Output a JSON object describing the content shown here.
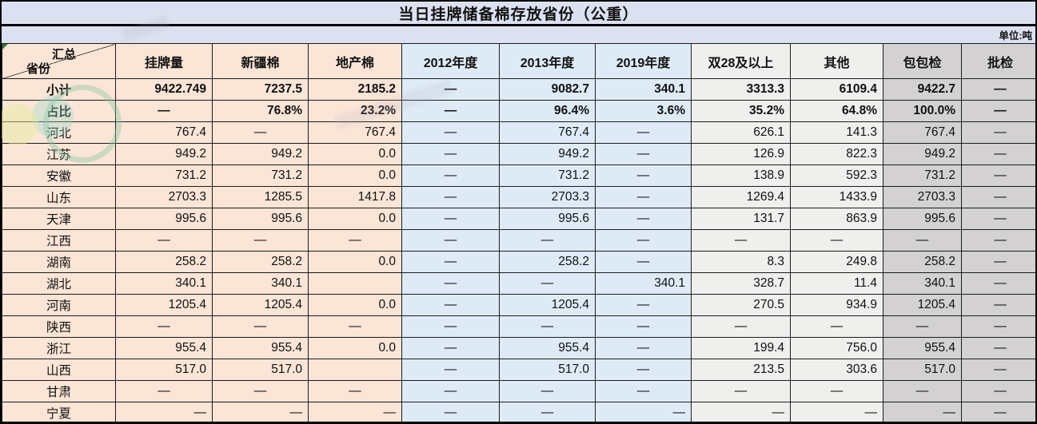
{
  "title": "当日挂牌储备棉存放省份（公重）",
  "unit_label": "单位:吨",
  "corner": {
    "top_label": "汇总",
    "bottom_label": "省份"
  },
  "columns": [
    "挂牌量",
    "新疆棉",
    "地产棉",
    "2012年度",
    "2013年度",
    "2019年度",
    "双28及以上",
    "其他",
    "包包检",
    "批检"
  ],
  "column_groups": [
    "peach",
    "peach",
    "peach",
    "blue",
    "blue",
    "blue",
    "lite",
    "lite",
    "gray",
    "gray"
  ],
  "colors": {
    "banner": "#DBE1F0",
    "peach": "#FBE5D6",
    "blue": "#DEEBF7",
    "lite": "#EFEFED",
    "gray": "#D3D1D1"
  },
  "rows": [
    {
      "label": "小计",
      "bold": true,
      "cells": [
        "9422.749",
        "7237.5",
        "2185.2",
        "—",
        "9082.7",
        "340.1",
        "3313.3",
        "6109.4",
        "9422.7",
        "—"
      ],
      "aligns": [
        "r",
        "r",
        "r",
        "c",
        "r",
        "r",
        "r",
        "r",
        "r",
        "c"
      ]
    },
    {
      "label": "占比",
      "bold": true,
      "cells": [
        "—",
        "76.8%",
        "23.2%",
        "—",
        "96.4%",
        "3.6%",
        "35.2%",
        "64.8%",
        "100.0%",
        "—"
      ],
      "aligns": [
        "c",
        "r",
        "r",
        "c",
        "r",
        "r",
        "r",
        "r",
        "r",
        "c"
      ]
    },
    {
      "label": "河北",
      "bold": false,
      "cells": [
        "767.4",
        "—",
        "767.4",
        "—",
        "767.4",
        "—",
        "626.1",
        "141.3",
        "767.4",
        "—"
      ],
      "aligns": [
        "r",
        "c",
        "r",
        "c",
        "r",
        "c",
        "r",
        "r",
        "r",
        "c"
      ]
    },
    {
      "label": "江苏",
      "bold": false,
      "cells": [
        "949.2",
        "949.2",
        "0.0",
        "—",
        "949.2",
        "—",
        "126.9",
        "822.3",
        "949.2",
        "—"
      ],
      "aligns": [
        "r",
        "r",
        "r",
        "c",
        "r",
        "c",
        "r",
        "r",
        "r",
        "c"
      ]
    },
    {
      "label": "安徽",
      "bold": false,
      "cells": [
        "731.2",
        "731.2",
        "0.0",
        "—",
        "731.2",
        "—",
        "138.9",
        "592.3",
        "731.2",
        "—"
      ],
      "aligns": [
        "r",
        "r",
        "r",
        "c",
        "r",
        "c",
        "r",
        "r",
        "r",
        "c"
      ]
    },
    {
      "label": "山东",
      "bold": false,
      "cells": [
        "2703.3",
        "1285.5",
        "1417.8",
        "—",
        "2703.3",
        "—",
        "1269.4",
        "1433.9",
        "2703.3",
        "—"
      ],
      "aligns": [
        "r",
        "r",
        "r",
        "c",
        "r",
        "c",
        "r",
        "r",
        "r",
        "c"
      ]
    },
    {
      "label": "天津",
      "bold": false,
      "cells": [
        "995.6",
        "995.6",
        "0.0",
        "—",
        "995.6",
        "—",
        "131.7",
        "863.9",
        "995.6",
        "—"
      ],
      "aligns": [
        "r",
        "r",
        "r",
        "c",
        "r",
        "c",
        "r",
        "r",
        "r",
        "c"
      ]
    },
    {
      "label": "江西",
      "bold": false,
      "cells": [
        "—",
        "—",
        "—",
        "—",
        "—",
        "—",
        "—",
        "—",
        "—",
        "—"
      ],
      "aligns": [
        "c",
        "c",
        "c",
        "c",
        "c",
        "c",
        "c",
        "c",
        "c",
        "c"
      ]
    },
    {
      "label": "湖南",
      "bold": false,
      "cells": [
        "258.2",
        "258.2",
        "0.0",
        "—",
        "258.2",
        "—",
        "8.3",
        "249.8",
        "258.2",
        "—"
      ],
      "aligns": [
        "r",
        "r",
        "r",
        "c",
        "r",
        "c",
        "r",
        "r",
        "r",
        "c"
      ]
    },
    {
      "label": "湖北",
      "bold": false,
      "cells": [
        "340.1",
        "340.1",
        "",
        "—",
        "—",
        "340.1",
        "328.7",
        "11.4",
        "340.1",
        "—"
      ],
      "aligns": [
        "r",
        "r",
        "r",
        "c",
        "c",
        "r",
        "r",
        "r",
        "r",
        "c"
      ]
    },
    {
      "label": "河南",
      "bold": false,
      "cells": [
        "1205.4",
        "1205.4",
        "0.0",
        "—",
        "1205.4",
        "—",
        "270.5",
        "934.9",
        "1205.4",
        "—"
      ],
      "aligns": [
        "r",
        "r",
        "r",
        "c",
        "r",
        "c",
        "r",
        "r",
        "r",
        "c"
      ]
    },
    {
      "label": "陕西",
      "bold": false,
      "cells": [
        "—",
        "—",
        "—",
        "—",
        "—",
        "—",
        "—",
        "—",
        "—",
        "—"
      ],
      "aligns": [
        "c",
        "c",
        "c",
        "c",
        "c",
        "c",
        "c",
        "c",
        "c",
        "c"
      ]
    },
    {
      "label": "浙江",
      "bold": false,
      "cells": [
        "955.4",
        "955.4",
        "0.0",
        "—",
        "955.4",
        "—",
        "199.4",
        "756.0",
        "955.4",
        "—"
      ],
      "aligns": [
        "r",
        "r",
        "r",
        "c",
        "r",
        "c",
        "r",
        "r",
        "r",
        "c"
      ]
    },
    {
      "label": "山西",
      "bold": false,
      "cells": [
        "517.0",
        "517.0",
        "",
        "—",
        "517.0",
        "—",
        "213.5",
        "303.6",
        "517.0",
        "—"
      ],
      "aligns": [
        "r",
        "r",
        "r",
        "c",
        "r",
        "c",
        "r",
        "r",
        "r",
        "c"
      ]
    },
    {
      "label": "甘肃",
      "bold": false,
      "cells": [
        "—",
        "—",
        "—",
        "—",
        "—",
        "—",
        "—",
        "—",
        "—",
        "—"
      ],
      "aligns": [
        "c",
        "c",
        "c",
        "c",
        "c",
        "c",
        "c",
        "c",
        "c",
        "c"
      ]
    },
    {
      "label": "宁夏",
      "bold": false,
      "cells": [
        "—",
        "—",
        "—",
        "—",
        "—",
        "—",
        "—",
        "—",
        "—",
        "—"
      ],
      "aligns": [
        "r",
        "r",
        "r",
        "c",
        "c",
        "r",
        "r",
        "r",
        "r",
        "c"
      ]
    }
  ]
}
